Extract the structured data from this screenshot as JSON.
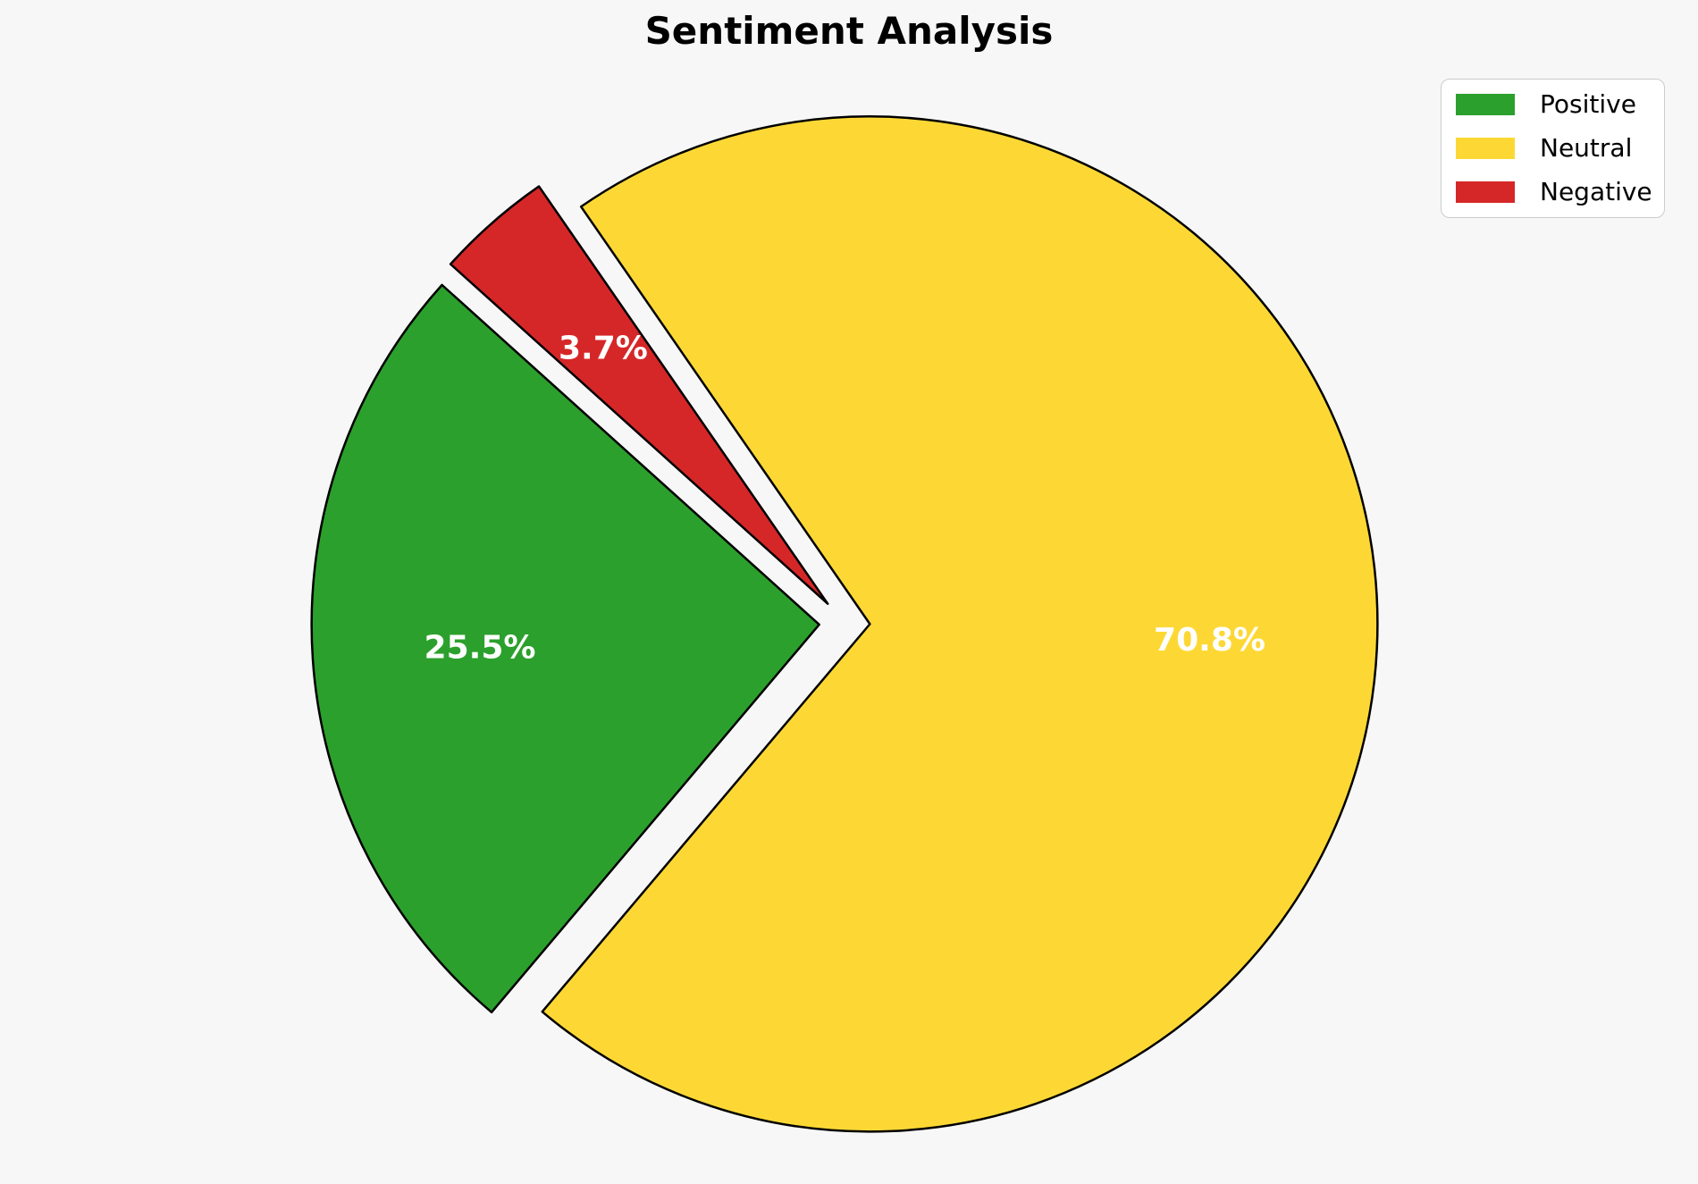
{
  "figure": {
    "background_color": "#f7f7f7"
  },
  "chart_data": {
    "type": "pie",
    "title": "Sentiment Analysis",
    "title_color": "#000000",
    "categories": [
      "Positive",
      "Neutral",
      "Negative"
    ],
    "values": [
      25.5,
      70.8,
      3.7
    ],
    "slices": [
      {
        "label": "Positive",
        "value": 25.5,
        "pct_label": "25.5%",
        "color": "#2ca02c"
      },
      {
        "label": "Neutral",
        "value": 70.8,
        "pct_label": "70.8%",
        "color": "#fdd835"
      },
      {
        "label": "Negative",
        "value": 3.7,
        "pct_label": "3.7%",
        "color": "#d62728"
      }
    ],
    "legend": {
      "position": "upper right",
      "items": [
        "Positive",
        "Neutral",
        "Negative"
      ]
    },
    "start_angle": 138,
    "direction": "counterclockwise",
    "explode": 0.05,
    "pct_label_color": "#ffffff",
    "edge_color": "#000000"
  }
}
